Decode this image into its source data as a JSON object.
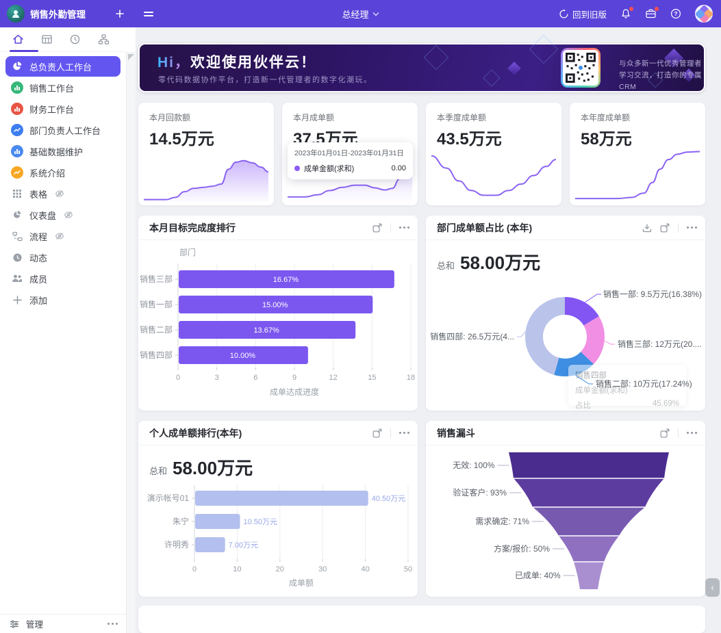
{
  "nav": {
    "app_title": "销售外勤管理",
    "role": "总经理",
    "back_label": "回到旧版"
  },
  "sidebar": {
    "items": [
      {
        "label": "总负责人工作台"
      },
      {
        "label": "销售工作台"
      },
      {
        "label": "财务工作台"
      },
      {
        "label": "部门负责人工作台"
      },
      {
        "label": "基础数据维护"
      },
      {
        "label": "系统介绍"
      },
      {
        "label": "表格"
      },
      {
        "label": "仪表盘"
      },
      {
        "label": "流程"
      },
      {
        "label": "动态"
      },
      {
        "label": "成员"
      }
    ],
    "add_label": "添加",
    "manage_label": "管理"
  },
  "banner": {
    "hi": "Hi，",
    "title": "欢迎使用伙伴云！",
    "subtitle": "零代码数据协作平台，打造新一代管理者的数字化潮玩。",
    "qr_line1": "与众多新一代优秀管理者",
    "qr_line2": "学习交流，打造你的专属CRM"
  },
  "stat_cards": [
    {
      "label": "本月回款额",
      "value": "14.5万元"
    },
    {
      "label": "本月成单额",
      "value": "37.5万元",
      "tooltip": {
        "date_range": "2023年01月01日-2023年01月31日",
        "series": "成单金额(求和)",
        "value": "0.00"
      }
    },
    {
      "label": "本季度成单额",
      "value": "43.5万元"
    },
    {
      "label": "本年度成单额",
      "value": "58万元"
    }
  ],
  "chart_data": [
    {
      "type": "bar",
      "orientation": "horizontal",
      "title": "本月目标完成度排行",
      "ylabel": "部门",
      "xlabel": "成单达成进度",
      "categories": [
        "销售三部",
        "销售一部",
        "销售二部",
        "销售四部"
      ],
      "values": [
        16.67,
        15.0,
        13.67,
        10.0
      ],
      "value_labels": [
        "16.67%",
        "15.00%",
        "13.67%",
        "10.00%"
      ],
      "xlim": [
        0,
        18
      ],
      "ticks": [
        0,
        3,
        6,
        9,
        12,
        15,
        18
      ],
      "bar_color": "#7b57f0"
    },
    {
      "type": "pie",
      "title": "部门成单额占比 (本年)",
      "total_label": "总和",
      "total_value": "58.00万元",
      "slices": [
        {
          "name": "销售一部",
          "value": 9.5,
          "pct": 16.38,
          "label": "销售一部: 9.5万元(16.38%)",
          "color": "#8355f2"
        },
        {
          "name": "销售三部",
          "value": 12,
          "pct": 20.69,
          "label": "销售三部: 12万元(20....",
          "color": "#f18fe4"
        },
        {
          "name": "销售二部",
          "value": 10,
          "pct": 17.24,
          "label": "销售二部: 10万元(17.24%)",
          "color": "#3e8fe3"
        },
        {
          "name": "销售四部",
          "value": 26.5,
          "pct": 45.69,
          "label": "销售四部: 26.5万元(4...",
          "color": "#bac3e9"
        }
      ],
      "tooltip": {
        "title": "销售四部",
        "row1_label": "成单金额(求和)",
        "row1_value": "",
        "row2_label": "占比",
        "row2_value": "45.69%"
      }
    },
    {
      "type": "bar",
      "orientation": "horizontal",
      "title": "个人成单额排行(本年)",
      "total_label": "总和",
      "total_value": "58.00万元",
      "xlabel": "成单额",
      "categories": [
        "演示帐号01",
        "朱宁",
        "许明秀"
      ],
      "values": [
        40.5,
        10.5,
        7
      ],
      "value_labels": [
        "40.50万元",
        "10.50万元",
        "7.00万元"
      ],
      "xlim": [
        0,
        50
      ],
      "ticks": [
        0,
        10,
        20,
        30,
        40,
        50
      ],
      "bar_color": "#b3bfee"
    },
    {
      "type": "funnel",
      "title": "销售漏斗",
      "stages": [
        {
          "name": "无效",
          "pct": 100,
          "label": "无效: 100%"
        },
        {
          "name": "验证客户",
          "pct": 93,
          "label": "验证客户: 93%"
        },
        {
          "name": "需求确定",
          "pct": 71,
          "label": "需求确定: 71%"
        },
        {
          "name": "方案/报价",
          "pct": 50,
          "label": "方案/报价: 50%"
        },
        {
          "name": "已成单",
          "pct": 40,
          "label": "已成单: 40%"
        }
      ],
      "colors": [
        "#4a2c8f",
        "#5d3ca0",
        "#775ab0",
        "#8f70c0",
        "#a98fd0"
      ]
    }
  ],
  "sparklines": {
    "s0": [
      [
        0,
        97
      ],
      [
        18,
        97
      ],
      [
        25,
        93
      ],
      [
        33,
        82
      ],
      [
        40,
        76
      ],
      [
        48,
        74
      ],
      [
        55,
        72
      ],
      [
        62,
        68
      ],
      [
        68,
        40
      ],
      [
        74,
        27
      ],
      [
        80,
        24
      ],
      [
        87,
        28
      ],
      [
        94,
        36
      ],
      [
        100,
        45
      ]
    ],
    "s1": [
      [
        0,
        92
      ],
      [
        14,
        92
      ],
      [
        24,
        88
      ],
      [
        34,
        80
      ],
      [
        44,
        74
      ],
      [
        54,
        70
      ],
      [
        62,
        70
      ],
      [
        70,
        75
      ],
      [
        78,
        79
      ],
      [
        84,
        76
      ],
      [
        90,
        58
      ],
      [
        95,
        32
      ],
      [
        100,
        8
      ]
    ],
    "s2": [
      [
        0,
        15
      ],
      [
        12,
        38
      ],
      [
        22,
        62
      ],
      [
        32,
        80
      ],
      [
        42,
        89
      ],
      [
        52,
        89
      ],
      [
        62,
        80
      ],
      [
        72,
        68
      ],
      [
        82,
        52
      ],
      [
        92,
        35
      ],
      [
        100,
        22
      ]
    ],
    "s3": [
      [
        0,
        95
      ],
      [
        18,
        95
      ],
      [
        34,
        95
      ],
      [
        45,
        93
      ],
      [
        55,
        85
      ],
      [
        62,
        65
      ],
      [
        68,
        40
      ],
      [
        75,
        22
      ],
      [
        82,
        12
      ],
      [
        90,
        8
      ],
      [
        100,
        7
      ]
    ]
  },
  "colors": {
    "accent": "#5a43d8",
    "spark": "#8a63f2",
    "danger": "#ff4d4f"
  }
}
